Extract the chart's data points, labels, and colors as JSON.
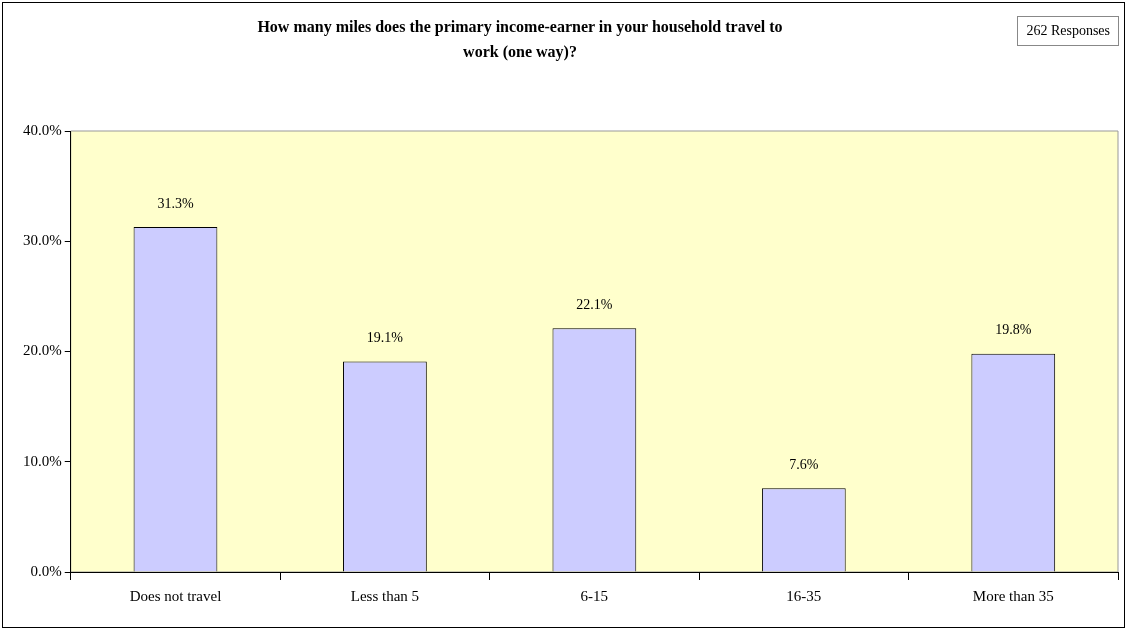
{
  "chart_data": {
    "type": "bar",
    "title": "How many miles does the primary income-earner in your household travel to work (one way)?",
    "categories": [
      "Does not travel",
      "Less than 5",
      "6-15",
      "16-35",
      "More than 35"
    ],
    "values": [
      31.3,
      19.1,
      22.1,
      7.6,
      19.8
    ],
    "value_labels": [
      "31.3%",
      "19.1%",
      "22.1%",
      "7.6%",
      "19.8%"
    ],
    "color": "#ccccff",
    "ylim": [
      0,
      40
    ],
    "yticks": [
      {
        "value": 0,
        "label": "0.0%"
      },
      {
        "value": 10,
        "label": "10.0%"
      },
      {
        "value": 20,
        "label": "20.0%"
      },
      {
        "value": 30,
        "label": "30.0%"
      },
      {
        "value": 40,
        "label": "40.0%"
      }
    ],
    "grid": false,
    "legend": false,
    "annotations": [
      "262 Responses"
    ]
  }
}
